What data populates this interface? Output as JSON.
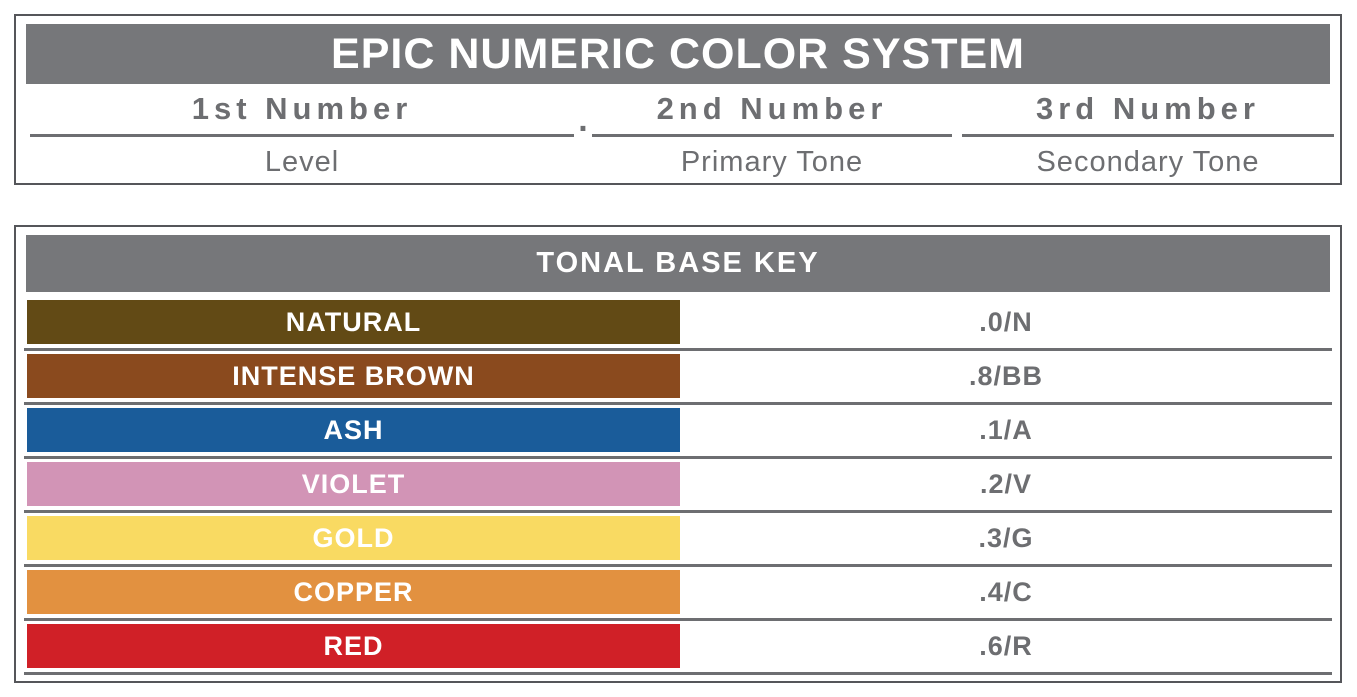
{
  "header": {
    "title": "EPIC NUMERIC COLOR SYSTEM",
    "separator_dot": ".",
    "columns": [
      {
        "number": "1st Number",
        "meaning": "Level"
      },
      {
        "number": "2nd Number",
        "meaning": "Primary Tone"
      },
      {
        "number": "3rd Number",
        "meaning": "Secondary Tone"
      }
    ]
  },
  "tonal_base_key": {
    "title": "TONAL BASE KEY",
    "rows": [
      {
        "label": "NATURAL",
        "code": ".0/N",
        "color": "#624a15"
      },
      {
        "label": "INTENSE BROWN",
        "code": ".8/BB",
        "color": "#8a4a1e"
      },
      {
        "label": "ASH",
        "code": ".1/A",
        "color": "#1a5c9a"
      },
      {
        "label": "VIOLET",
        "code": ".2/V",
        "color": "#d294b6"
      },
      {
        "label": "GOLD",
        "code": ".3/G",
        "color": "#f9da62"
      },
      {
        "label": "COPPER",
        "code": ".4/C",
        "color": "#e29140"
      },
      {
        "label": "RED",
        "code": ".6/R",
        "color": "#d02027"
      }
    ]
  },
  "colors": {
    "band_gray": "#76777a",
    "text_gray": "#6d6e71",
    "border_gray": "#55565a",
    "label_white": "#ffffff"
  }
}
